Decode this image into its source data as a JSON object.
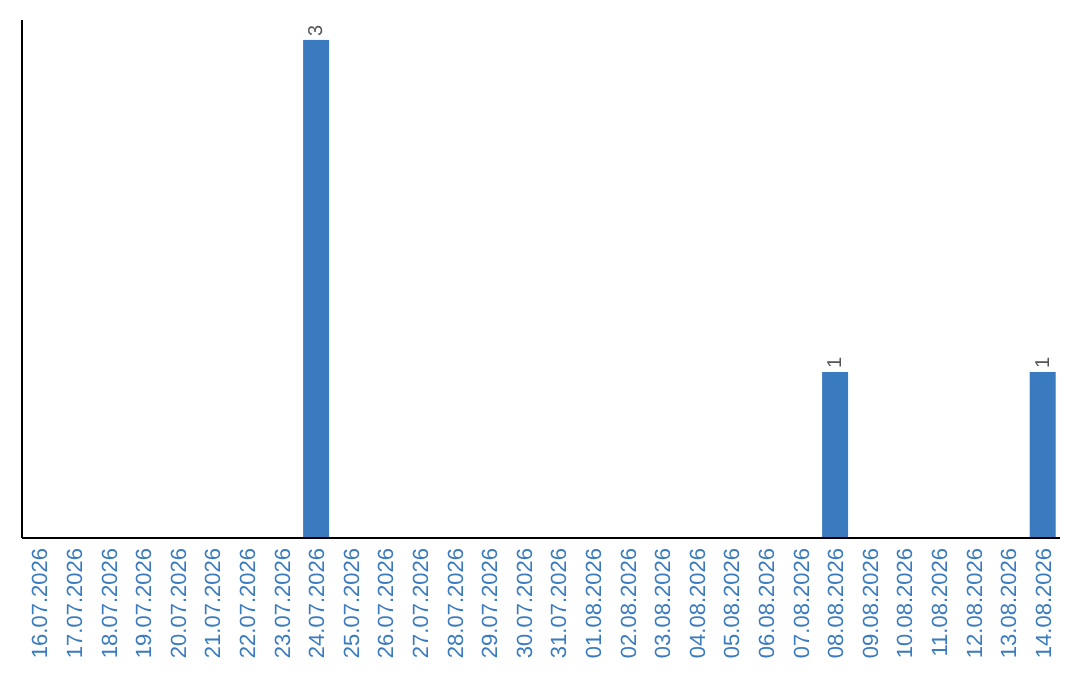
{
  "chart_data": {
    "type": "bar",
    "categories": [
      "16.07.2026",
      "17.07.2026",
      "18.07.2026",
      "19.07.2026",
      "20.07.2026",
      "21.07.2026",
      "22.07.2026",
      "23.07.2026",
      "24.07.2026",
      "25.07.2026",
      "26.07.2026",
      "27.07.2026",
      "28.07.2026",
      "29.07.2026",
      "30.07.2026",
      "31.07.2026",
      "01.08.2026",
      "02.08.2026",
      "03.08.2026",
      "04.08.2026",
      "05.08.2026",
      "06.08.2026",
      "07.08.2026",
      "08.08.2026",
      "09.08.2026",
      "10.08.2026",
      "11.08.2026",
      "12.08.2026",
      "13.08.2026",
      "14.08.2026"
    ],
    "values": [
      0,
      0,
      0,
      0,
      0,
      0,
      0,
      0,
      3,
      0,
      0,
      0,
      0,
      0,
      0,
      0,
      0,
      0,
      0,
      0,
      0,
      0,
      0,
      1,
      0,
      0,
      0,
      0,
      0,
      1
    ],
    "value_labels": [
      null,
      null,
      null,
      null,
      null,
      null,
      null,
      null,
      "3",
      null,
      null,
      null,
      null,
      null,
      null,
      null,
      null,
      null,
      null,
      null,
      null,
      null,
      null,
      "1",
      null,
      null,
      null,
      null,
      null,
      "1"
    ],
    "color": "#3a7bbf",
    "tick_labels": "x"
  }
}
